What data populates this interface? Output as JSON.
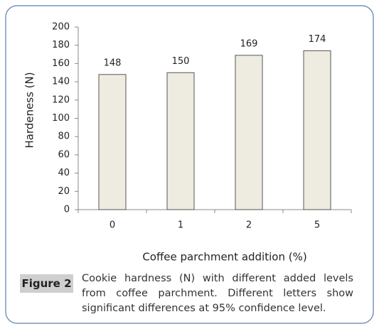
{
  "chart_data": {
    "type": "bar",
    "x_label": "Coffee parchment addition (%)",
    "y_label": "Hardeness (N)",
    "categories": [
      "0",
      "1",
      "2",
      "5"
    ],
    "values": [
      148,
      150,
      169,
      174
    ],
    "color": "#eeebe0",
    "ylim": [
      0,
      200
    ],
    "yticks": [
      0,
      20,
      40,
      60,
      80,
      100,
      120,
      140,
      160,
      180,
      200
    ],
    "grid": false
  },
  "caption": {
    "label": "Figure 2",
    "text": "Cookie hardness (N) with different added levels from coffee parchment. Different letters show significant differences at 95% confidence level."
  }
}
